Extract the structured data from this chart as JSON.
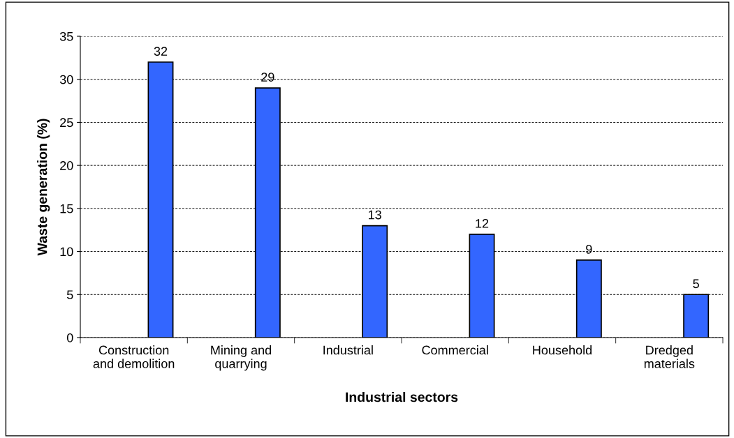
{
  "chart_data": {
    "type": "bar",
    "xlabel": "Industrial sectors",
    "ylabel": "Waste generation (%)",
    "categories": [
      "Construction\nand demolition",
      "Mining and\nquarrying",
      "Industrial",
      "Commercial",
      "Household",
      "Dredged\nmaterials"
    ],
    "values": [
      32,
      29,
      13,
      12,
      9,
      5
    ],
    "color": "#3366ff",
    "data_labels": true,
    "ylim": [
      0,
      35
    ],
    "yticks": [
      0,
      5,
      10,
      15,
      20,
      25,
      30,
      35
    ],
    "grid": "y"
  }
}
